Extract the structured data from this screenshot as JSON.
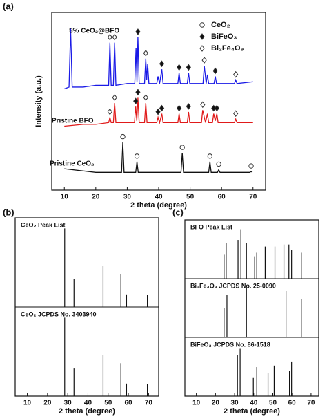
{
  "chart_data": [
    {
      "type": "line",
      "label": "(a)",
      "xlabel": "2 theta (degree)",
      "ylabel": "Intensity (a.u.)",
      "xlim": [
        6,
        74
      ],
      "xticks": [
        10,
        20,
        30,
        40,
        50,
        60,
        70
      ],
      "ylim": [
        0,
        100
      ],
      "phases": [
        {
          "name": "CeO₂",
          "symbol": "open-circle"
        },
        {
          "name": "BiFeO₃",
          "symbol": "filled-diamond"
        },
        {
          "name": "Bi₂Fe₄O₉",
          "symbol": "open-diamond"
        }
      ],
      "series": [
        {
          "name": "5% CeO₂@BFO",
          "color": "#1a1ae6",
          "x": [
            10,
            11.5,
            12,
            12.5,
            16,
            20,
            24.1,
            24.5,
            24.9,
            25.6,
            26,
            26.4,
            30,
            32.4,
            32.8,
            33.1,
            33.4,
            33.8,
            35.5,
            35.9,
            36.2,
            36.5,
            36.9,
            39.4,
            39.8,
            40.3,
            41,
            41.4,
            46.1,
            46.5,
            46.9,
            49.1,
            49.5,
            49.9,
            54.1,
            54.5,
            55.1,
            55.5,
            55.9,
            57.6,
            58,
            58.4,
            64.1,
            64.5,
            64.9,
            70
          ],
          "values": [
            57,
            58,
            91,
            58,
            58,
            59,
            59,
            83,
            59,
            59,
            83,
            59,
            60,
            60,
            80,
            61,
            86,
            60,
            60,
            74,
            62,
            71,
            60,
            60,
            64,
            60,
            68,
            60,
            60,
            66,
            60,
            60,
            66,
            60,
            60,
            70,
            60,
            65,
            60,
            60,
            64,
            60,
            60,
            62,
            60,
            61
          ],
          "markers": {
            "x": [
              24.5,
              26,
              33.4,
              35.9,
              41,
              46.5,
              49.5,
              54.5,
              58,
              64.5
            ],
            "phase": [
              "Bi₂Fe₄O₉",
              "Bi₂Fe₄O₉",
              "BiFeO₃",
              "Bi₂Fe₄O₉",
              "BiFeO₃",
              "BiFeO₃",
              "BiFeO₃",
              "Bi₂Fe₄O₉",
              "BiFeO₃",
              "Bi₂Fe₄O₉"
            ]
          }
        },
        {
          "name": "Pristine BFO",
          "color": "#e01a1a",
          "x": [
            10,
            16,
            20,
            24.1,
            24.5,
            24.9,
            25.6,
            26,
            26.4,
            30,
            32.3,
            32.7,
            33.05,
            33.4,
            33.8,
            35.5,
            35.9,
            36.3,
            39.4,
            39.8,
            40.3,
            41,
            41.4,
            46.1,
            46.5,
            46.9,
            49.1,
            49.5,
            49.9,
            53.6,
            54,
            54.9,
            55.5,
            55.9,
            57.1,
            57.5,
            58,
            58.5,
            58.9,
            64.1,
            64.5,
            64.9,
            70
          ],
          "values": [
            36,
            37,
            37,
            38,
            41,
            38,
            38,
            49,
            38,
            38,
            38,
            47,
            39,
            52,
            38,
            38,
            49,
            38,
            38,
            41,
            38,
            43,
            38,
            38,
            43,
            38,
            38,
            44,
            38,
            38,
            45,
            38,
            43,
            38,
            38,
            43,
            39,
            43,
            38,
            38,
            40,
            38,
            38
          ],
          "markers": {
            "x": [
              24.5,
              26,
              32.7,
              33.4,
              35.9,
              39.8,
              41,
              46.5,
              49.5,
              54,
              57.5,
              58.5,
              64.5
            ],
            "phase": [
              "Bi₂Fe₄O₉",
              "Bi₂Fe₄O₉",
              "BiFeO₃",
              "BiFeO₃",
              "Bi₂Fe₄O₉",
              "BiFeO₃",
              "BiFeO₃",
              "BiFeO₃",
              "BiFeO₃",
              "Bi₂Fe₄O₉",
              "BiFeO₃",
              "BiFeO₃",
              "Bi₂Fe₄O₉"
            ]
          }
        },
        {
          "name": "Pristine CeO₂",
          "color": "#111111",
          "x": [
            10,
            15,
            20,
            25,
            28.2,
            28.6,
            29,
            32.7,
            33.1,
            33.5,
            40,
            47.1,
            47.5,
            47.9,
            52,
            55.9,
            56.3,
            56.7,
            58.7,
            59.1,
            59.5,
            65,
            69,
            69.4,
            69.8
          ],
          "values": [
            12,
            11,
            10,
            10,
            10,
            27,
            10,
            10,
            16,
            10,
            10,
            10,
            21,
            10,
            10,
            10,
            16,
            10,
            10,
            11.5,
            10,
            10,
            10,
            10.5,
            10
          ],
          "markers": {
            "x": [
              28.6,
              33.1,
              47.5,
              56.3,
              59.1,
              69.4
            ],
            "phase": [
              "CeO₂",
              "CeO₂",
              "CeO₂",
              "CeO₂",
              "CeO₂",
              "CeO₂"
            ]
          }
        }
      ]
    },
    {
      "type": "stick",
      "label": "(b)",
      "xlabel": "2 theta (degree)",
      "xlim": [
        4,
        75
      ],
      "xticks": [
        10,
        20,
        30,
        40,
        50,
        60,
        70
      ],
      "ylim": [
        0,
        110
      ],
      "subplots": [
        {
          "title": "CeO₂ Peak List",
          "x": [
            28.5,
            33.1,
            47.5,
            56.3,
            59.1,
            69.4
          ],
          "values": [
            100,
            36,
            52,
            42,
            16,
            15
          ]
        },
        {
          "title": "CeO₂ JCPDS No. 3403940",
          "x": [
            28.5,
            33.1,
            47.5,
            56.3,
            59.1,
            69.4
          ],
          "values": [
            100,
            36,
            52,
            42,
            16,
            15
          ]
        }
      ]
    },
    {
      "type": "stick",
      "label": "(c)",
      "xlabel": "2 theta (degree)",
      "xlim": [
        4,
        74
      ],
      "xticks": [
        10,
        20,
        30,
        40,
        50,
        60,
        70
      ],
      "ylim": [
        0,
        110
      ],
      "subplots": [
        {
          "title": "BFO Peak List",
          "x": [
            24.5,
            25.6,
            31.8,
            33.3,
            36.2,
            40.5,
            41.6,
            46,
            51.1,
            55.8,
            58.4,
            59.8,
            64.9
          ],
          "values": [
            47,
            70,
            76,
            97,
            70,
            44,
            51,
            63,
            63,
            67,
            67,
            57,
            51
          ]
        },
        {
          "title": "Bi₂Fe₄O₉ JCPDS No. 25-0090",
          "x": [
            24.5,
            26,
            36.2,
            56.9,
            64.9
          ],
          "values": [
            58,
            84,
            97,
            91,
            75
          ]
        },
        {
          "title": "BiFeO₃ JCPDS No. 86-1518",
          "x": [
            31.5,
            32.9,
            39.8,
            41.6,
            47.5,
            50.7,
            58.7,
            59.8
          ],
          "values": [
            81,
            93,
            37,
            57,
            46,
            60,
            50,
            68
          ]
        }
      ]
    }
  ]
}
